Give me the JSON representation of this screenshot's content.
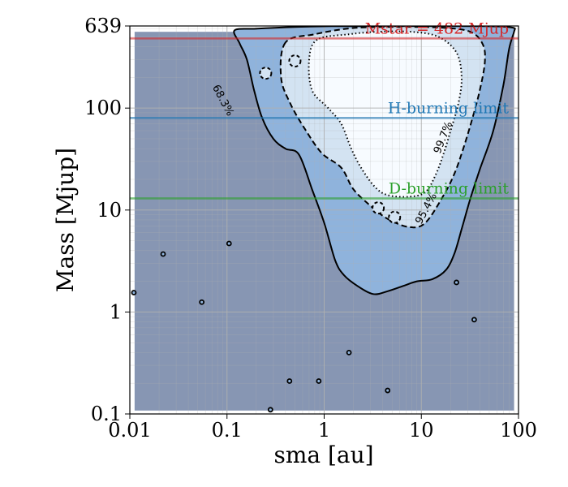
{
  "chart_data": {
    "type": "contour",
    "xlabel": "sma [au]",
    "ylabel": "Mass [Mjup]",
    "xscale": "log",
    "yscale": "log",
    "xlim": [
      0.01,
      100
    ],
    "ylim": [
      0.1,
      639
    ],
    "x_ticks": [
      {
        "value": 0.01,
        "label": "0.01"
      },
      {
        "value": 0.1,
        "label": "0.1"
      },
      {
        "value": 1,
        "label": "1"
      },
      {
        "value": 10,
        "label": "10"
      },
      {
        "value": 100,
        "label": "100"
      }
    ],
    "y_ticks": [
      {
        "value": 0.1,
        "label": "0.1"
      },
      {
        "value": 1,
        "label": "1"
      },
      {
        "value": 10,
        "label": "10"
      },
      {
        "value": 100,
        "label": "100"
      },
      {
        "value": 639,
        "label": "639"
      }
    ],
    "grid": true,
    "colors": {
      "outside": "#8796b3",
      "level_68": "#8fb3dc",
      "level_95": "#d3e3f2",
      "level_997": "#f7fbff",
      "grid": "#b0b0b0",
      "contour": "#000000"
    },
    "hlines": [
      {
        "label": "Mstar = 482 Mjup",
        "y": 482,
        "color": "#d62728"
      },
      {
        "label": "H-burning limit",
        "y": 80,
        "color": "#1f77b4"
      },
      {
        "label": "D-burning limit",
        "y": 13,
        "color": "#2ca02c"
      }
    ],
    "contours": [
      {
        "level": "68.3%",
        "style": "solid",
        "points": [
          [
            0.12,
            580
          ],
          [
            0.135,
            430
          ],
          [
            0.16,
            300
          ],
          [
            0.19,
            150
          ],
          [
            0.23,
            80
          ],
          [
            0.3,
            50
          ],
          [
            0.4,
            40
          ],
          [
            0.55,
            35
          ],
          [
            0.75,
            16
          ],
          [
            1.0,
            7.5
          ],
          [
            1.3,
            3.2
          ],
          [
            1.6,
            2.3
          ],
          [
            2.2,
            1.8
          ],
          [
            3.2,
            1.5
          ],
          [
            4.5,
            1.6
          ],
          [
            6.5,
            1.8
          ],
          [
            9.0,
            2.0
          ],
          [
            13,
            2.1
          ],
          [
            18,
            2.6
          ],
          [
            22,
            3.8
          ],
          [
            26,
            6.5
          ],
          [
            32,
            13
          ],
          [
            40,
            25
          ],
          [
            55,
            60
          ],
          [
            70,
            170
          ],
          [
            80,
            380
          ],
          [
            90,
            560
          ],
          [
            90,
            610
          ],
          [
            70,
            630
          ],
          [
            45,
            636
          ],
          [
            20,
            638
          ],
          [
            5,
            636
          ],
          [
            1.2,
            635
          ],
          [
            0.4,
            620
          ],
          [
            0.2,
            600
          ]
        ]
      },
      {
        "level": "95.4%",
        "style": "dashed",
        "points": [
          [
            0.4,
            440
          ],
          [
            0.36,
            200
          ],
          [
            0.45,
            110
          ],
          [
            0.65,
            60
          ],
          [
            0.95,
            36
          ],
          [
            1.5,
            26
          ],
          [
            2.0,
            16
          ],
          [
            3.0,
            11
          ],
          [
            4.5,
            8.2
          ],
          [
            7.5,
            6.8
          ],
          [
            11,
            7.5
          ],
          [
            17,
            14
          ],
          [
            22,
            23
          ],
          [
            27,
            40
          ],
          [
            33,
            75
          ],
          [
            40,
            150
          ],
          [
            45,
            280
          ],
          [
            43,
            420
          ],
          [
            32,
            560
          ],
          [
            16,
            616
          ],
          [
            6,
            626
          ],
          [
            2,
            610
          ],
          [
            0.8,
            530
          ]
        ]
      },
      {
        "level": "99.7%",
        "style": "dotted",
        "points": [
          [
            0.85,
            470
          ],
          [
            0.7,
            300
          ],
          [
            0.75,
            150
          ],
          [
            1.1,
            100
          ],
          [
            1.5,
            70
          ],
          [
            1.9,
            40
          ],
          [
            2.4,
            26
          ],
          [
            3.3,
            17
          ],
          [
            4.5,
            14
          ],
          [
            7.5,
            13.5
          ],
          [
            11,
            15
          ],
          [
            14,
            22
          ],
          [
            17,
            36
          ],
          [
            20,
            60
          ],
          [
            24,
            110
          ],
          [
            26,
            200
          ],
          [
            23,
            350
          ],
          [
            15,
            500
          ],
          [
            8,
            560
          ],
          [
            3.5,
            560
          ],
          [
            1.8,
            530
          ]
        ]
      }
    ],
    "islands": [
      {
        "level": "95.4%",
        "center": [
          0.25,
          220
        ]
      },
      {
        "level": "95.4%",
        "center": [
          0.5,
          290
        ]
      },
      {
        "level": "95.4%",
        "center": [
          3.6,
          10.5
        ]
      },
      {
        "level": "95.4%",
        "center": [
          5.3,
          8.5
        ]
      },
      {
        "level": "68.3%",
        "center": [
          0.105,
          4.7
        ]
      },
      {
        "level": "68.3%",
        "center": [
          0.055,
          1.25
        ]
      },
      {
        "level": "68.3%",
        "center": [
          0.022,
          3.7
        ]
      },
      {
        "level": "68.3%",
        "center": [
          0.011,
          1.55
        ]
      },
      {
        "level": "68.3%",
        "center": [
          0.44,
          0.21
        ]
      },
      {
        "level": "68.3%",
        "center": [
          0.88,
          0.21
        ]
      },
      {
        "level": "68.3%",
        "center": [
          1.8,
          0.4
        ]
      },
      {
        "level": "68.3%",
        "center": [
          4.5,
          0.17
        ]
      },
      {
        "level": "68.3%",
        "center": [
          0.28,
          0.11
        ]
      },
      {
        "level": "68.3%",
        "center": [
          23,
          1.95
        ]
      },
      {
        "level": "68.3%",
        "center": [
          35,
          0.84
        ]
      }
    ],
    "contour_labels": [
      {
        "text": "68.3%",
        "x": 0.085,
        "y": 115,
        "rotate": 62
      },
      {
        "text": "99.7%",
        "x": 18,
        "y": 50,
        "rotate": -68
      },
      {
        "text": "95.4%",
        "x": 12,
        "y": 10,
        "rotate": -62
      }
    ]
  }
}
